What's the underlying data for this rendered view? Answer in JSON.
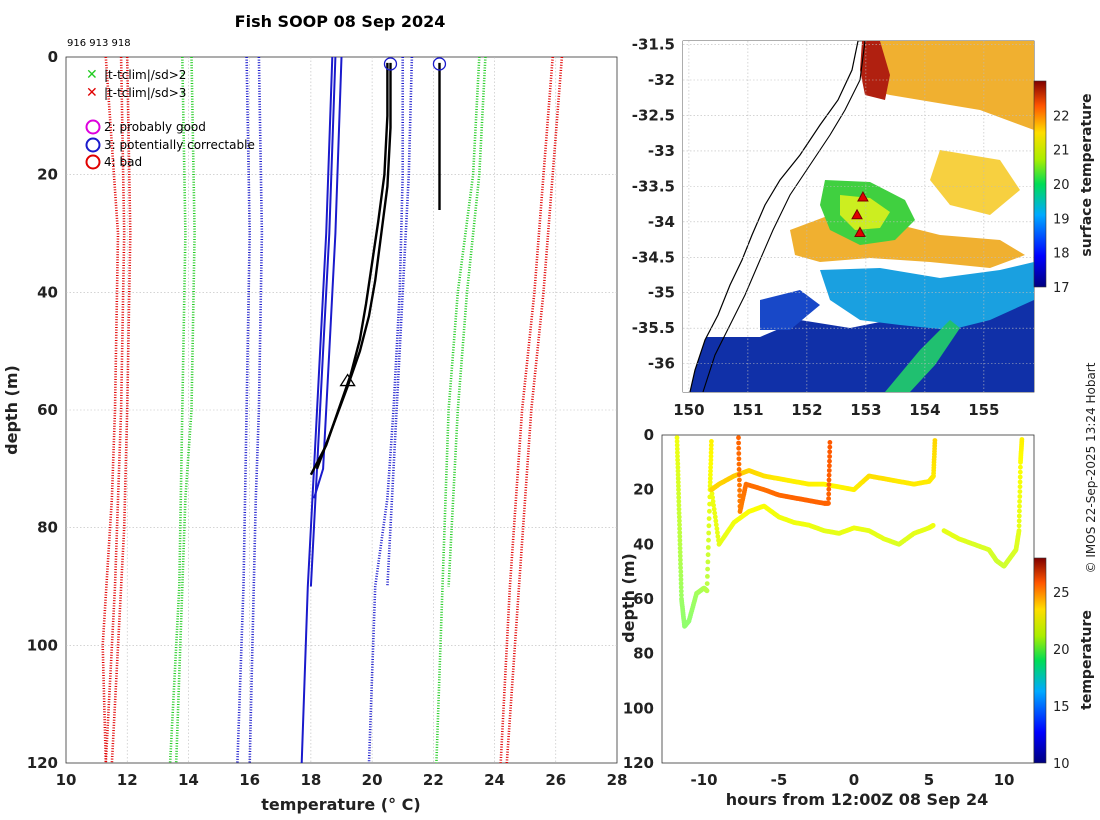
{
  "title": "Fish SOOP 08 Sep 2024",
  "profile_ids": "916 913 918",
  "credit": "© IMOS 22-Sep-2025 13:24 Hobart",
  "colors": {
    "red": "#e00000",
    "green": "#22cc22",
    "blue": "#1a1acc",
    "black": "#000000",
    "magenta": "#dd00dd"
  },
  "legend": {
    "x_green": "|t-tclim|/sd>2",
    "x_red": "|t-tclim|/sd>3",
    "o_magenta": "2: probably good",
    "o_blue": "3: potentially correctable",
    "o_red": "4: bad"
  },
  "chart_data": [
    {
      "type": "line",
      "name": "temperature-profile",
      "xlabel": "temperature (° C)",
      "ylabel": "depth (m)",
      "xlim": [
        10,
        28
      ],
      "ylim": [
        120,
        0
      ],
      "xticks": [
        10,
        12,
        14,
        16,
        18,
        20,
        22,
        24,
        26,
        28
      ],
      "yticks": [
        0,
        20,
        40,
        60,
        80,
        100,
        120
      ],
      "series": [
        {
          "name": "clim-red-left-a",
          "color": "red",
          "style": "dotted",
          "x": [
            11.3,
            11.7,
            11.6,
            11.5,
            11.2,
            11.3
          ],
          "y": [
            0,
            30,
            60,
            75,
            100,
            120
          ]
        },
        {
          "name": "clim-red-left-b",
          "color": "red",
          "style": "dotted",
          "x": [
            11.8,
            11.9,
            11.8,
            11.6,
            11.3
          ],
          "y": [
            0,
            30,
            60,
            90,
            120
          ]
        },
        {
          "name": "clim-red-left-c",
          "color": "red",
          "style": "dotted",
          "x": [
            12.0,
            12.1,
            12.0,
            11.9,
            11.5
          ],
          "y": [
            0,
            30,
            60,
            80,
            120
          ]
        },
        {
          "name": "clim-green-left-a",
          "color": "green",
          "style": "dotted",
          "x": [
            13.8,
            13.9,
            13.8,
            13.7,
            13.4
          ],
          "y": [
            0,
            30,
            60,
            90,
            120
          ]
        },
        {
          "name": "clim-green-left-b",
          "color": "green",
          "style": "dotted",
          "x": [
            14.1,
            14.2,
            14.1,
            13.9,
            13.6
          ],
          "y": [
            0,
            30,
            60,
            75,
            120
          ]
        },
        {
          "name": "clim-blue-left-a",
          "color": "blue",
          "style": "dotted",
          "x": [
            15.9,
            16.0,
            15.9,
            15.8,
            15.6
          ],
          "y": [
            0,
            30,
            60,
            90,
            120
          ]
        },
        {
          "name": "clim-blue-left-b",
          "color": "blue",
          "style": "dotted",
          "x": [
            16.3,
            16.4,
            16.3,
            16.2,
            16.0
          ],
          "y": [
            0,
            30,
            60,
            75,
            120
          ]
        },
        {
          "name": "clim-blue-right-a",
          "color": "blue",
          "style": "dotted",
          "x": [
            21.0,
            21.0,
            20.9,
            20.7,
            20.5,
            20.1,
            19.9
          ],
          "y": [
            0,
            20,
            40,
            60,
            75,
            90,
            120
          ]
        },
        {
          "name": "clim-blue-right-b",
          "color": "blue",
          "style": "dotted",
          "x": [
            21.3,
            21.2,
            21.0,
            20.8,
            20.5
          ],
          "y": [
            0,
            20,
            40,
            60,
            90
          ]
        },
        {
          "name": "clim-green-right-a",
          "color": "green",
          "style": "dotted",
          "x": [
            23.5,
            23.3,
            22.8,
            22.5,
            22.3,
            22.1
          ],
          "y": [
            0,
            20,
            40,
            60,
            90,
            120
          ]
        },
        {
          "name": "clim-green-right-b",
          "color": "green",
          "style": "dotted",
          "x": [
            23.7,
            23.5,
            23.1,
            22.8,
            22.5
          ],
          "y": [
            0,
            20,
            40,
            60,
            90
          ]
        },
        {
          "name": "clim-red-right-a",
          "color": "red",
          "style": "dotted",
          "x": [
            25.9,
            25.6,
            25.3,
            24.9,
            24.5,
            24.2
          ],
          "y": [
            0,
            20,
            40,
            60,
            90,
            120
          ]
        },
        {
          "name": "clim-red-right-b",
          "color": "red",
          "style": "dotted",
          "x": [
            26.2,
            25.9,
            25.6,
            25.2,
            24.8,
            24.4
          ],
          "y": [
            0,
            20,
            40,
            60,
            90,
            120
          ]
        },
        {
          "name": "clim-blue-solid-a",
          "color": "blue",
          "style": "solid",
          "x": [
            18.7,
            18.5,
            18.3,
            18.1,
            17.9,
            17.7
          ],
          "y": [
            0,
            30,
            50,
            70,
            90,
            120
          ]
        },
        {
          "name": "clim-blue-solid-b",
          "color": "blue",
          "style": "solid",
          "x": [
            18.8,
            18.6,
            18.4,
            18.2,
            18.0
          ],
          "y": [
            0,
            30,
            50,
            70,
            90
          ]
        },
        {
          "name": "clim-blue-solid-c",
          "color": "blue",
          "style": "solid",
          "x": [
            19.0,
            18.8,
            18.6,
            18.4,
            18.1
          ],
          "y": [
            0,
            30,
            50,
            70,
            75
          ]
        },
        {
          "name": "profile-913",
          "color": "black",
          "style": "solid",
          "x": [
            20.5,
            20.5,
            20.4,
            20.2,
            20.0,
            19.8,
            19.6,
            19.3,
            18.9,
            18.5,
            18.0
          ],
          "y": [
            1,
            10,
            20,
            28,
            35,
            42,
            48,
            54,
            60,
            66,
            71
          ]
        },
        {
          "name": "profile-916",
          "color": "black",
          "style": "solid",
          "x": [
            20.6,
            20.6,
            20.5,
            20.3,
            20.1,
            19.9,
            19.6,
            19.2,
            18.7,
            18.2
          ],
          "y": [
            1,
            12,
            22,
            30,
            38,
            44,
            50,
            56,
            63,
            70
          ]
        },
        {
          "name": "profile-918",
          "color": "black",
          "style": "solid",
          "x": [
            22.2,
            22.2,
            22.2,
            22.2
          ],
          "y": [
            1,
            10,
            20,
            26
          ]
        }
      ],
      "markers": [
        {
          "name": "surface-flag-913",
          "type": "o",
          "color": "blue",
          "x": 20.6,
          "y": 0.5
        },
        {
          "name": "surface-flag-918",
          "type": "o",
          "color": "blue",
          "x": 22.2,
          "y": 0.5
        },
        {
          "name": "profile-end-triangle",
          "type": "triangle",
          "color": "black",
          "x": 19.2,
          "y": 55
        }
      ]
    },
    {
      "type": "heatmap",
      "name": "sst-map",
      "xlim": [
        149.9,
        155.85
      ],
      "ylim": [
        -36.4,
        -31.45
      ],
      "xticks": [
        150,
        151,
        152,
        153,
        154,
        155
      ],
      "yticks": [
        -31.5,
        -32,
        -32.5,
        -33,
        -33.5,
        -34,
        -34.5,
        -35,
        -35.5,
        -36
      ],
      "colorbar": {
        "label": "surface temperature",
        "range": [
          17,
          23
        ],
        "ticks": [
          17,
          18,
          19,
          20,
          21,
          22
        ]
      },
      "profile_locations": [
        {
          "lon": 152.95,
          "lat": -33.65
        },
        {
          "lon": 152.85,
          "lat": -33.9
        },
        {
          "lon": 152.9,
          "lat": -34.15
        }
      ]
    },
    {
      "type": "scatter",
      "name": "depth-time",
      "xlabel": "hours from 12:00Z 08 Sep 24",
      "ylabel": "depth (m)",
      "xlim": [
        -12.8,
        12
      ],
      "ylim": [
        120,
        0
      ],
      "xticks": [
        -10,
        -5,
        0,
        5,
        10
      ],
      "yticks": [
        0,
        20,
        40,
        60,
        80,
        100,
        120
      ],
      "colorbar": {
        "label": "temperature",
        "range": [
          10,
          28
        ],
        "ticks": [
          10,
          15,
          20,
          25
        ]
      },
      "series": [
        {
          "name": "track-a",
          "t": [
            -11.8,
            -11.7,
            -11.6,
            -11.5,
            -11.3,
            -11.0,
            -10.5,
            -10.0,
            -9.8,
            -9.6,
            -9.5
          ],
          "depth": [
            1,
            20,
            40,
            60,
            70,
            68,
            58,
            56,
            57,
            20,
            1
          ],
          "temp": [
            21,
            20.5,
            20,
            19.5,
            19.3,
            19.3,
            19.6,
            19.8,
            20,
            21,
            21.5
          ]
        },
        {
          "name": "track-b",
          "t": [
            -9.5,
            -9,
            -8,
            -7,
            -6,
            -5,
            -4,
            -3,
            -2,
            -1,
            0,
            1,
            2,
            3,
            4,
            5,
            5.3
          ],
          "depth": [
            20,
            40,
            32,
            28,
            26,
            30,
            32,
            33,
            35,
            36,
            34,
            35,
            38,
            40,
            36,
            34,
            33
          ],
          "temp": [
            21,
            20.8,
            21,
            21.2,
            21.2,
            21,
            21,
            21,
            20.8,
            20.8,
            21,
            20.8,
            20.8,
            20.6,
            20.8,
            20.8,
            21
          ]
        },
        {
          "name": "track-c",
          "t": [
            -9.5,
            -9,
            -8,
            -7,
            -6,
            -5,
            -4,
            -3,
            -2,
            -1,
            0,
            1,
            2,
            3,
            4,
            5,
            5.3,
            5.4
          ],
          "depth": [
            20,
            18,
            15,
            13,
            15,
            16,
            17,
            18,
            18,
            19,
            20,
            15,
            16,
            17,
            18,
            17,
            15,
            1
          ],
          "temp": [
            22,
            22,
            22.2,
            22,
            21.8,
            21.6,
            21.5,
            21.5,
            21.4,
            21.4,
            21.5,
            21.8,
            21.8,
            21.6,
            21.6,
            21.6,
            21.6,
            22
          ]
        },
        {
          "name": "track-d",
          "t": [
            -7.7,
            -7.6,
            -7.2,
            -6,
            -5,
            -4,
            -3,
            -2,
            -1.7,
            -1.6
          ],
          "depth": [
            1,
            28,
            18,
            20,
            22,
            23,
            24,
            25,
            25,
            1
          ],
          "temp": [
            24,
            23.5,
            23.8,
            23.8,
            23.9,
            24,
            24,
            24,
            24,
            24.2
          ]
        },
        {
          "name": "track-e",
          "t": [
            6,
            7,
            8,
            9,
            9.5,
            10,
            10.4,
            10.8,
            11,
            11.1,
            11.2
          ],
          "depth": [
            35,
            38,
            40,
            42,
            46,
            48,
            45,
            42,
            35,
            10,
            1
          ],
          "temp": [
            20.8,
            20.8,
            20.6,
            20.6,
            20.4,
            20.4,
            20.5,
            20.6,
            20.8,
            21.2,
            21.5
          ]
        }
      ]
    }
  ]
}
